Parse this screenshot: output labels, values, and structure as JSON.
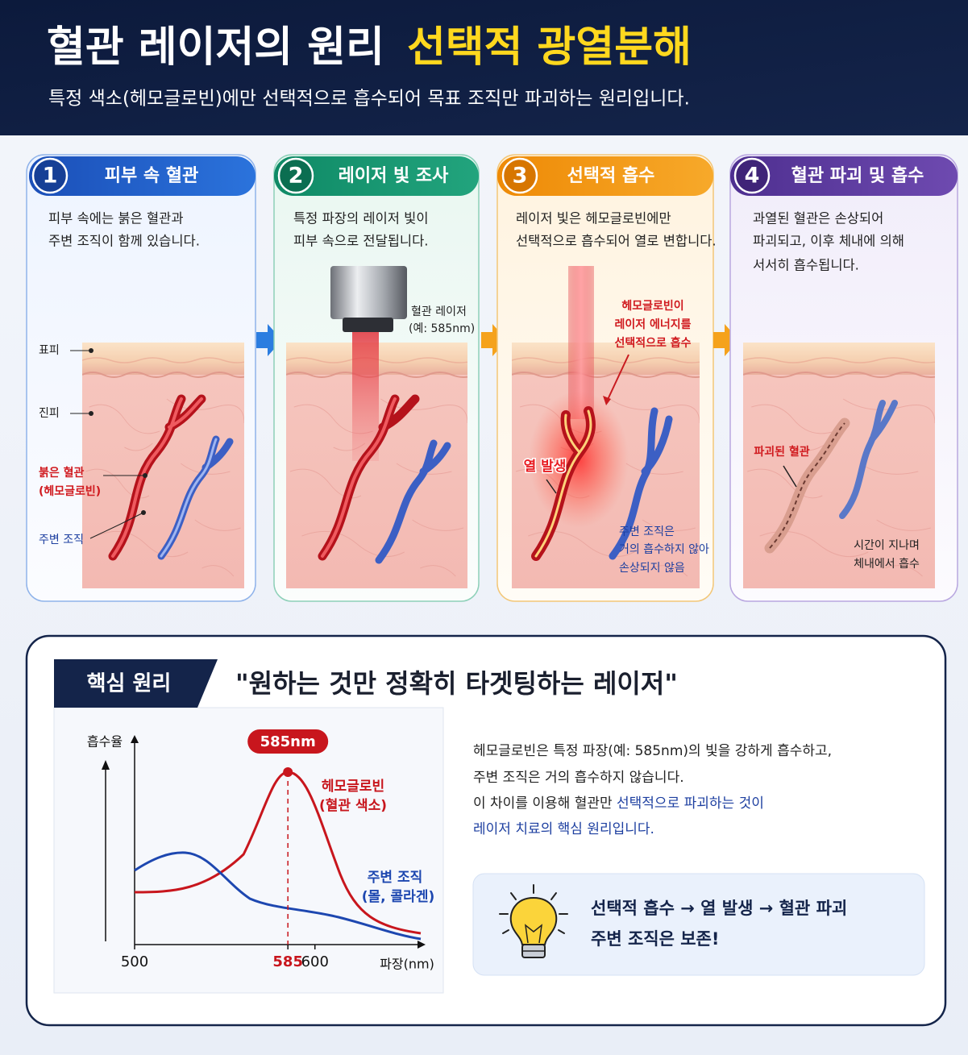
{
  "header": {
    "title": "혈관 레이저의 원리",
    "title_highlight": "선택적 광열분해",
    "subtitle": "특정 색소(헤모글로빈)에만 선택적으로 흡수되어 목표 조직만 파괴하는 원리입니다."
  },
  "steps": [
    {
      "number": 1,
      "title": "피부 속 혈관",
      "description": [
        "피부 속에는 붉은 혈관과",
        "주변 조직이 함께 있습니다."
      ],
      "labels": [
        "표피",
        "진피",
        "붉은 혈관",
        "(헤모글로빈)",
        "주변 조직"
      ]
    },
    {
      "number": 2,
      "title": "레이저 빛 조사",
      "description": [
        "특정 파장의 레이저 빛이",
        "피부 속으로 전달됩니다."
      ],
      "labels": [
        "혈관 레이저",
        "(예: 585nm)"
      ]
    },
    {
      "number": 3,
      "title": "선택적 흡수",
      "description": [
        "레이저 빛은 헤모글로빈에만",
        "선택적으로 흡수되어 열로 변합니다."
      ],
      "labels": [
        "헤모글로빈이",
        "레이저 에너지를",
        "선택적으로 흡수",
        "열 발생",
        "주변 조직은",
        "거의 흡수하지 않아",
        "손상되지 않음"
      ]
    },
    {
      "number": 4,
      "title": "혈관 파괴 및 흡수",
      "description": [
        "과열된 혈관은 손상되어",
        "파괴되고, 이후 체내에 의해",
        "서서히 흡수됩니다."
      ],
      "labels": [
        "파괴된 혈관",
        "시간이 지나며",
        "체내에서 흡수"
      ]
    }
  ],
  "key_principle": {
    "tab": "핵심 원리",
    "quote": "\"원하는 것만 정확히 타겟팅하는 레이저\"",
    "graph": {
      "y_label": "흡수율",
      "x_label": "파장(nm)",
      "xlim": [
        500,
        660
      ],
      "xticks": [
        500,
        585,
        600
      ],
      "peak_label": "585nm",
      "series": [
        {
          "name": "헤모글로빈",
          "note": "(혈관 색소)",
          "color": "#c8161d"
        },
        {
          "name": "주변 조직",
          "note": "(몰, 콜라겐)",
          "color": "#1d47b0"
        }
      ]
    },
    "explanation": [
      "헤모글로빈은 특정 파장(예: 585nm)의 빛을 강하게 흡수하고,",
      "주변 조직은 거의 흡수하지 않습니다.",
      [
        "이 차이를 이용해 혈관만 ",
        "선택적으로 파괴하는 것이"
      ],
      "레이저 치료의 핵심 원리입니다."
    ],
    "summary": [
      "선택적 흡수 → 열 발생 → 혈관 파괴",
      "주변 조직은 보존!"
    ]
  }
}
